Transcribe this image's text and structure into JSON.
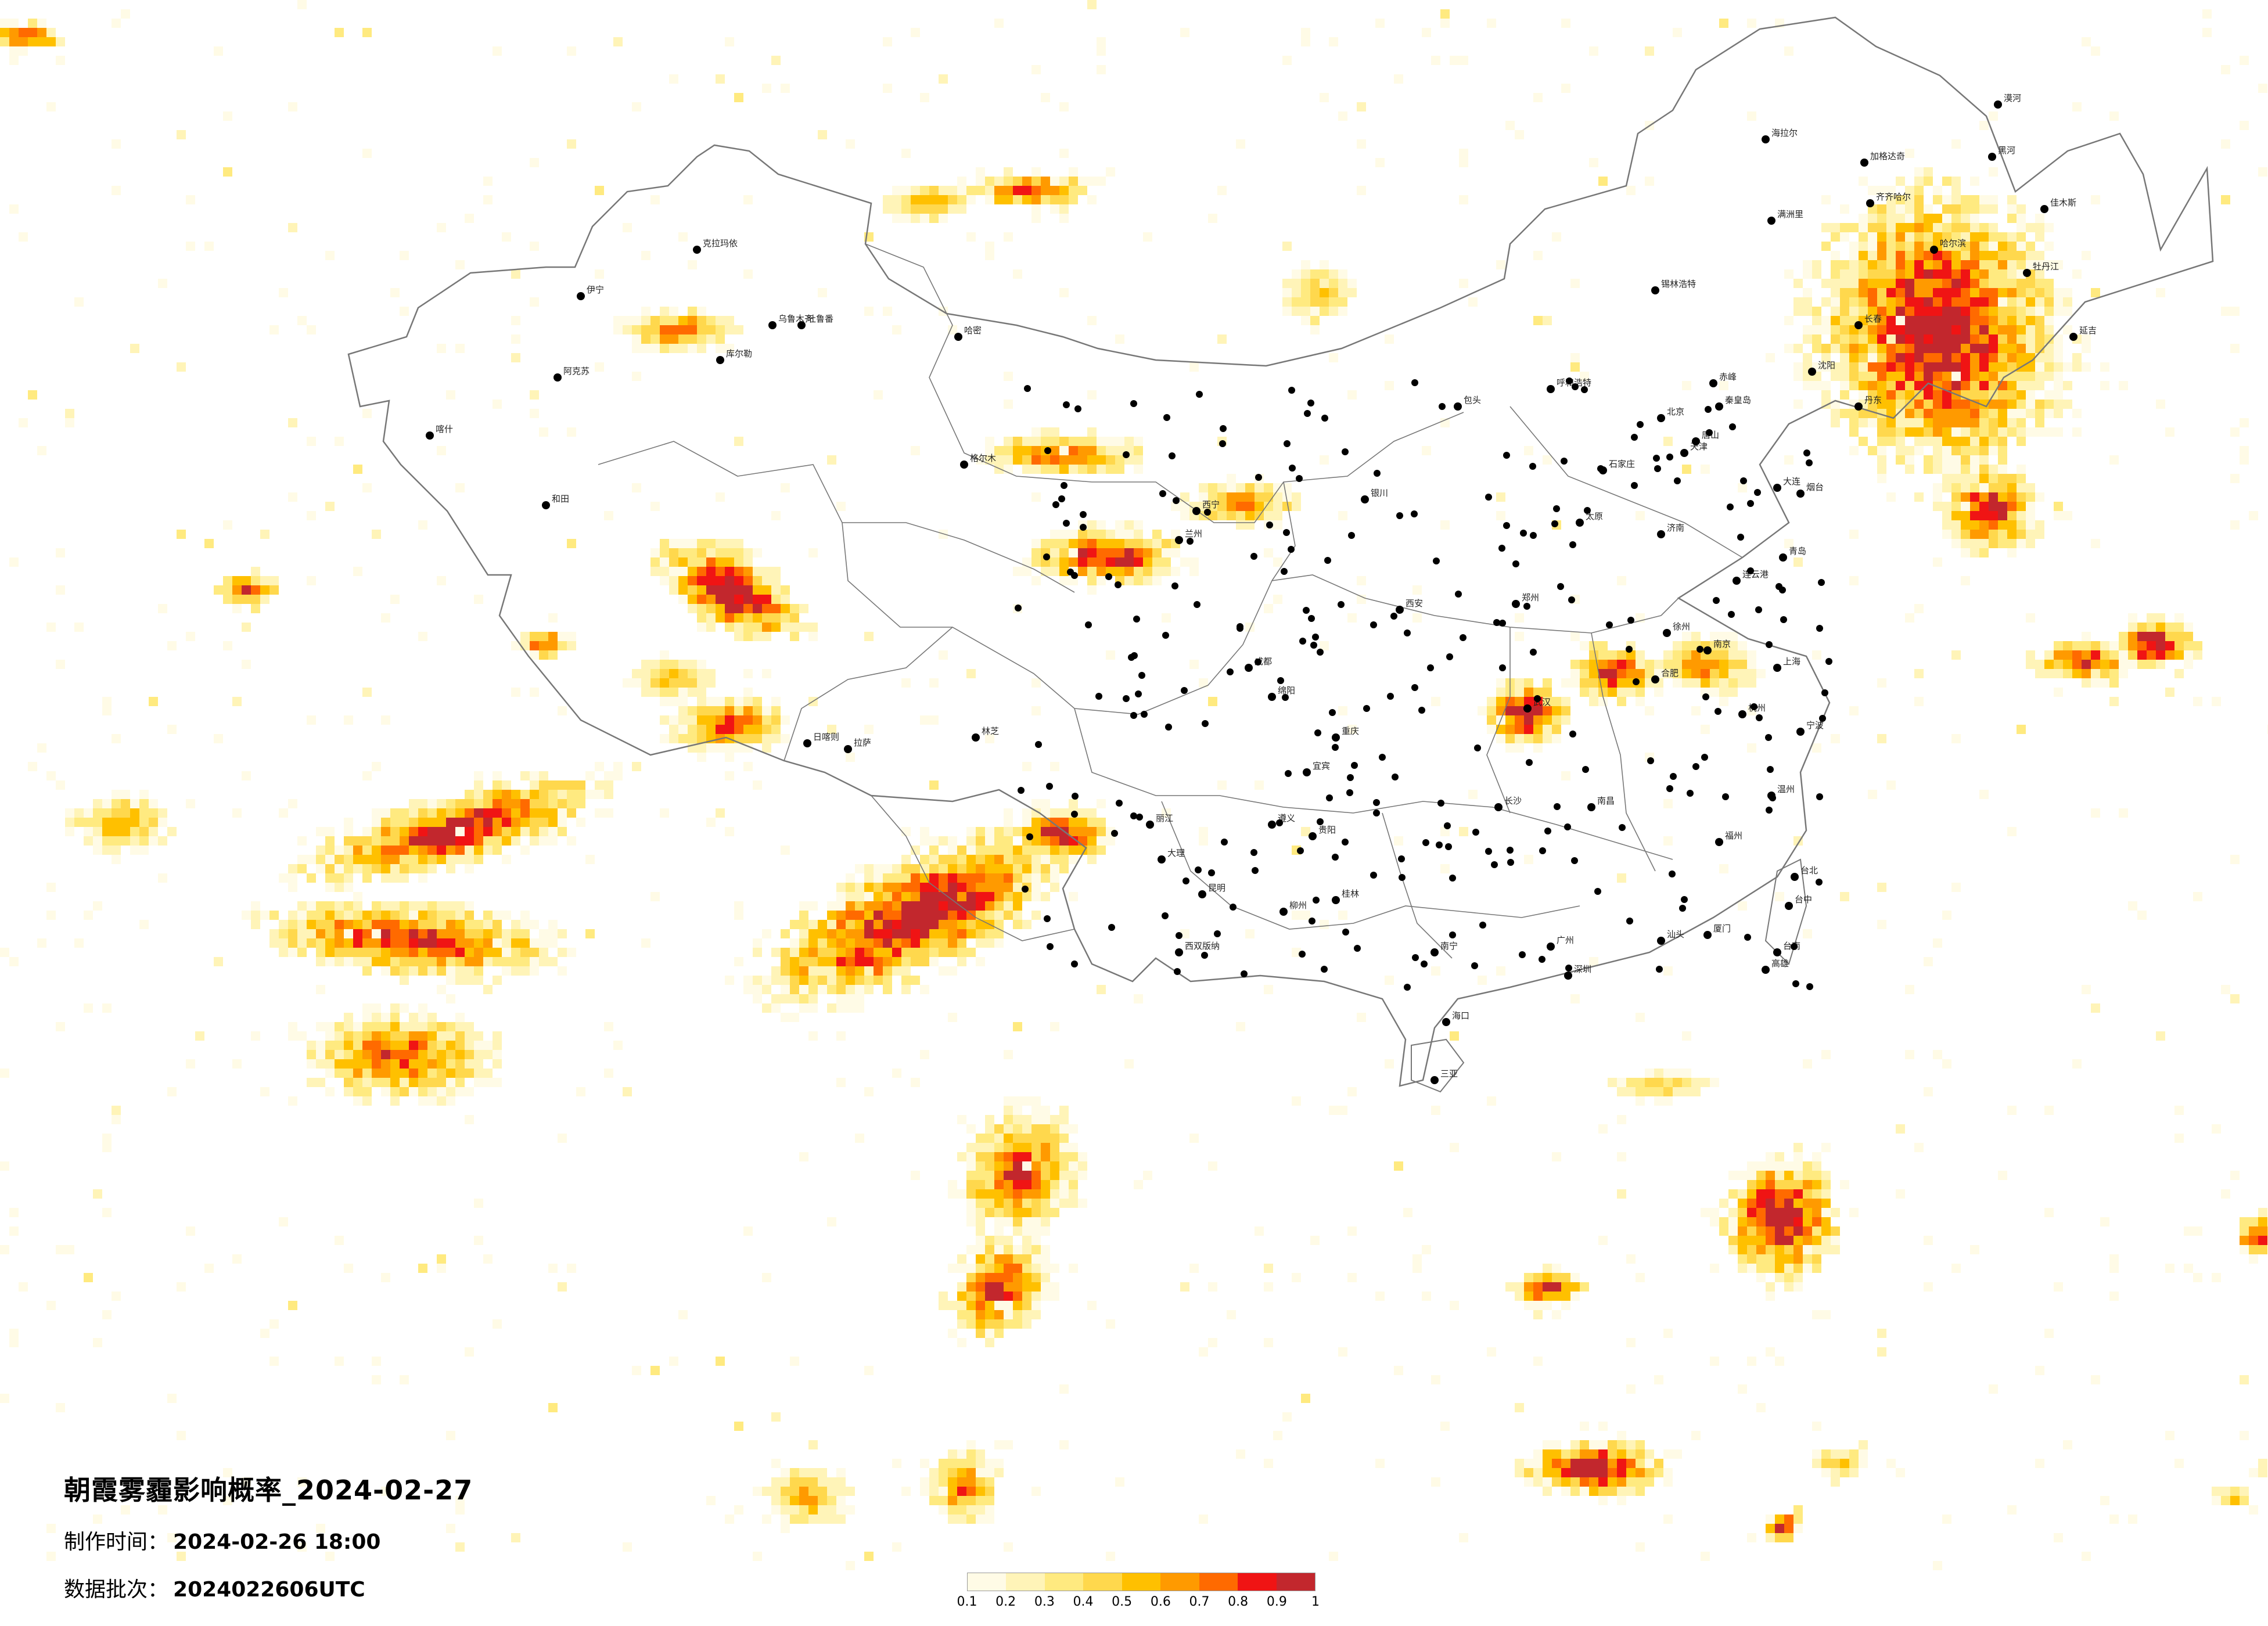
{
  "title": "朝霞雾霾影响概率_2024-02-27",
  "made_time_label": "制作时间：",
  "made_time_value": "2024-02-26 18:00",
  "batch_label": "数据批次：",
  "batch_value": "2024022606UTC",
  "legend": {
    "ticks": [
      "0.1",
      "0.2",
      "0.3",
      "0.4",
      "0.5",
      "0.6",
      "0.7",
      "0.8",
      "0.9",
      "1"
    ],
    "colors": [
      "#fffbe6",
      "#fff4b8",
      "#ffea80",
      "#ffd84d",
      "#ffc000",
      "#ff9a00",
      "#ff6a00",
      "#f01414",
      "#c2272d"
    ]
  },
  "colors": {
    "boundary": "#777777",
    "city_dot": "#000000",
    "background": "#ffffff"
  },
  "cities": [
    "哈尔滨",
    "长春",
    "沈阳",
    "大连",
    "北京",
    "天津",
    "石家庄",
    "太原",
    "呼和浩特",
    "济南",
    "郑州",
    "西安",
    "兰州",
    "西宁",
    "银川",
    "乌鲁木齐",
    "拉萨",
    "成都",
    "重庆",
    "武汉",
    "长沙",
    "南昌",
    "合肥",
    "南京",
    "上海",
    "杭州",
    "福州",
    "台北",
    "广州",
    "南宁",
    "海口",
    "贵阳",
    "昆明",
    "齐齐哈尔",
    "佳木斯",
    "牡丹江",
    "锡林浩特",
    "包头",
    "赤峰",
    "唐山",
    "烟台",
    "青岛",
    "徐州",
    "连云港",
    "宁波",
    "温州",
    "厦门",
    "汕头",
    "深圳",
    "桂林",
    "柳州",
    "遵义",
    "绵阳",
    "宜宾",
    "格尔木",
    "喀什",
    "和田",
    "阿克苏",
    "库尔勒",
    "伊宁",
    "克拉玛依",
    "哈密",
    "吐鲁番",
    "日喀则",
    "林芝",
    "大理",
    "丽江",
    "西双版纳",
    "三亚",
    "台中",
    "台南",
    "高雄",
    "漠河",
    "黑河",
    "加格达奇",
    "满洲里",
    "海拉尔",
    "延吉",
    "丹东",
    "秦皇岛"
  ]
}
